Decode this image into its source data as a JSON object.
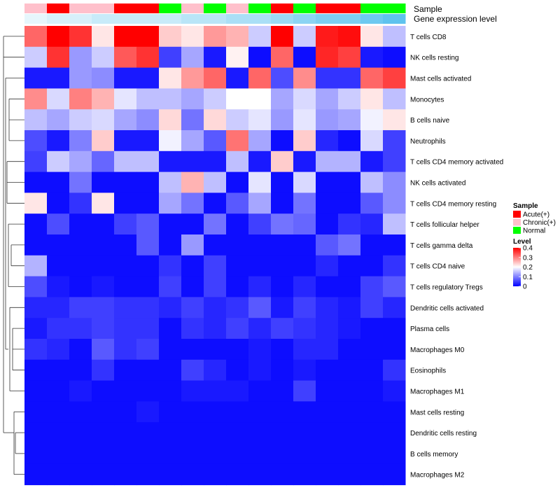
{
  "chart_data": {
    "type": "heatmap",
    "annotation_track_labels": [
      "Sample",
      "Gene expression level"
    ],
    "rows": [
      "T cells CD8",
      "NK cells resting",
      "Mast cells activated",
      "Monocytes",
      "B cells naive",
      "Neutrophils",
      "T cells CD4 memory activated",
      "NK cells activated",
      "T cells CD4 memory resting",
      "T cells follicular helper",
      "T cells gamma delta",
      "T cells CD4 naive",
      "T cells regulatory  Tregs",
      "Dendritic cells activated",
      "Plasma cells",
      "Macrophages M0",
      "Eosinophils",
      "Macrophages M1",
      "Mast cells resting",
      "Dendritic cells resting",
      "B cells memory",
      "Macrophages M2"
    ],
    "sample_groups": [
      "Chronic(+)",
      "Acute(+)",
      "Chronic(+)",
      "Chronic(+)",
      "Acute(+)",
      "Acute(+)",
      "Normal",
      "Chronic(+)",
      "Normal",
      "Chronic(+)",
      "Normal",
      "Acute(+)",
      "Normal",
      "Acute(+)",
      "Acute(+)",
      "Normal",
      "Normal"
    ],
    "expression_track": [
      0.04,
      0.05,
      0.05,
      0.06,
      0.06,
      0.06,
      0.06,
      0.07,
      0.07,
      0.08,
      0.08,
      0.09,
      0.1,
      0.11,
      0.11,
      0.12,
      0.13
    ],
    "values": [
      [
        0.32,
        0.4,
        0.36,
        0.22,
        0.4,
        0.4,
        0.24,
        0.22,
        0.28,
        0.26,
        0.16,
        0.4,
        0.16,
        0.38,
        0.39,
        0.22,
        0.15
      ],
      [
        0.16,
        0.36,
        0.12,
        0.16,
        0.33,
        0.36,
        0.05,
        0.13,
        0.02,
        0.21,
        0.01,
        0.32,
        0.01,
        0.37,
        0.35,
        0.02,
        0.01
      ],
      [
        0.02,
        0.02,
        0.12,
        0.11,
        0.02,
        0.02,
        0.22,
        0.28,
        0.32,
        0.02,
        0.32,
        0.06,
        0.29,
        0.04,
        0.04,
        0.32,
        0.35
      ],
      [
        0.29,
        0.17,
        0.3,
        0.26,
        0.18,
        0.15,
        0.15,
        0.13,
        0.16,
        0.2,
        0.2,
        0.13,
        0.17,
        0.13,
        0.16,
        0.22,
        0.15
      ],
      [
        0.15,
        0.13,
        0.16,
        0.17,
        0.13,
        0.11,
        0.23,
        0.09,
        0.23,
        0.16,
        0.18,
        0.12,
        0.18,
        0.12,
        0.13,
        0.19,
        0.22
      ],
      [
        0.06,
        0.02,
        0.1,
        0.24,
        0.02,
        0.02,
        0.19,
        0.13,
        0.07,
        0.31,
        0.13,
        0.01,
        0.24,
        0.03,
        0.01,
        0.17,
        0.05
      ],
      [
        0.05,
        0.16,
        0.13,
        0.08,
        0.15,
        0.15,
        0.02,
        0.02,
        0.02,
        0.15,
        0.02,
        0.24,
        0.02,
        0.14,
        0.14,
        0.02,
        0.05
      ],
      [
        0.01,
        0.01,
        0.09,
        0.01,
        0.01,
        0.01,
        0.15,
        0.26,
        0.15,
        0.01,
        0.18,
        0.01,
        0.17,
        0.01,
        0.01,
        0.15,
        0.11
      ],
      [
        0.22,
        0.01,
        0.04,
        0.22,
        0.01,
        0.01,
        0.13,
        0.09,
        0.01,
        0.07,
        0.13,
        0.01,
        0.09,
        0.01,
        0.01,
        0.07,
        0.11
      ],
      [
        0.01,
        0.06,
        0.01,
        0.01,
        0.05,
        0.07,
        0.01,
        0.01,
        0.09,
        0.01,
        0.05,
        0.09,
        0.08,
        0.01,
        0.04,
        0.03,
        0.15
      ],
      [
        0.01,
        0.01,
        0.01,
        0.01,
        0.01,
        0.07,
        0.01,
        0.12,
        0.01,
        0.01,
        0.01,
        0.01,
        0.01,
        0.07,
        0.09,
        0.01,
        0.01
      ],
      [
        0.14,
        0.01,
        0.01,
        0.01,
        0.01,
        0.01,
        0.04,
        0.01,
        0.05,
        0.01,
        0.01,
        0.01,
        0.01,
        0.03,
        0.01,
        0.01,
        0.04
      ],
      [
        0.06,
        0.02,
        0.01,
        0.02,
        0.01,
        0.01,
        0.05,
        0.01,
        0.05,
        0.01,
        0.03,
        0.01,
        0.03,
        0.01,
        0.01,
        0.05,
        0.07
      ],
      [
        0.03,
        0.03,
        0.05,
        0.05,
        0.04,
        0.04,
        0.03,
        0.05,
        0.03,
        0.04,
        0.07,
        0.02,
        0.05,
        0.03,
        0.02,
        0.05,
        0.03
      ],
      [
        0.02,
        0.04,
        0.04,
        0.05,
        0.04,
        0.04,
        0.01,
        0.04,
        0.03,
        0.05,
        0.03,
        0.05,
        0.04,
        0.03,
        0.02,
        0.01,
        0.01
      ],
      [
        0.04,
        0.03,
        0.01,
        0.07,
        0.04,
        0.05,
        0.01,
        0.01,
        0.01,
        0.01,
        0.02,
        0.01,
        0.03,
        0.03,
        0.01,
        0.01,
        0.01
      ],
      [
        0.01,
        0.01,
        0.01,
        0.04,
        0.01,
        0.01,
        0.01,
        0.05,
        0.03,
        0.01,
        0.02,
        0.01,
        0.02,
        0.01,
        0.01,
        0.01,
        0.04
      ],
      [
        0.01,
        0.01,
        0.02,
        0.01,
        0.01,
        0.01,
        0.01,
        0.02,
        0.02,
        0.02,
        0.01,
        0.01,
        0.05,
        0.01,
        0.01,
        0.01,
        0.02
      ],
      [
        0.01,
        0.01,
        0.01,
        0.01,
        0.01,
        0.02,
        0.01,
        0.01,
        0.01,
        0.01,
        0.01,
        0.01,
        0.01,
        0.01,
        0.01,
        0.01,
        0.01
      ],
      [
        0.01,
        0.01,
        0.01,
        0.01,
        0.01,
        0.01,
        0.01,
        0.01,
        0.01,
        0.01,
        0.01,
        0.01,
        0.01,
        0.01,
        0.01,
        0.01,
        0.01
      ],
      [
        0.01,
        0.01,
        0.01,
        0.01,
        0.01,
        0.01,
        0.01,
        0.01,
        0.01,
        0.01,
        0.01,
        0.01,
        0.01,
        0.01,
        0.01,
        0.01,
        0.01
      ],
      [
        0.01,
        0.01,
        0.01,
        0.01,
        0.01,
        0.01,
        0.01,
        0.01,
        0.01,
        0.01,
        0.01,
        0.01,
        0.01,
        0.01,
        0.01,
        0.01,
        0.01
      ]
    ],
    "color_scale": {
      "min": 0,
      "max": 0.4,
      "low": "#0000ff",
      "mid": "#ffffff",
      "high": "#ff0000",
      "midpoint": 0.2
    },
    "group_colors": {
      "Acute(+)": "#ff0000",
      "Chronic(+)": "#ffc0cb",
      "Normal": "#00ff00"
    },
    "expression_colors": {
      "low": "#e6f6fc",
      "high": "#5fc3ee"
    },
    "legend": {
      "sample_title": "Sample",
      "sample_items": [
        "Acute(+)",
        "Chronic(+)",
        "Normal"
      ],
      "level_title": "Level",
      "level_ticks": [
        "0.4",
        "0.3",
        "0.2",
        "0.1",
        "0"
      ],
      "level_tick_values": [
        0.4,
        0.3,
        0.2,
        0.1,
        0
      ],
      "placement": "right"
    },
    "dendrogram": "rows"
  }
}
